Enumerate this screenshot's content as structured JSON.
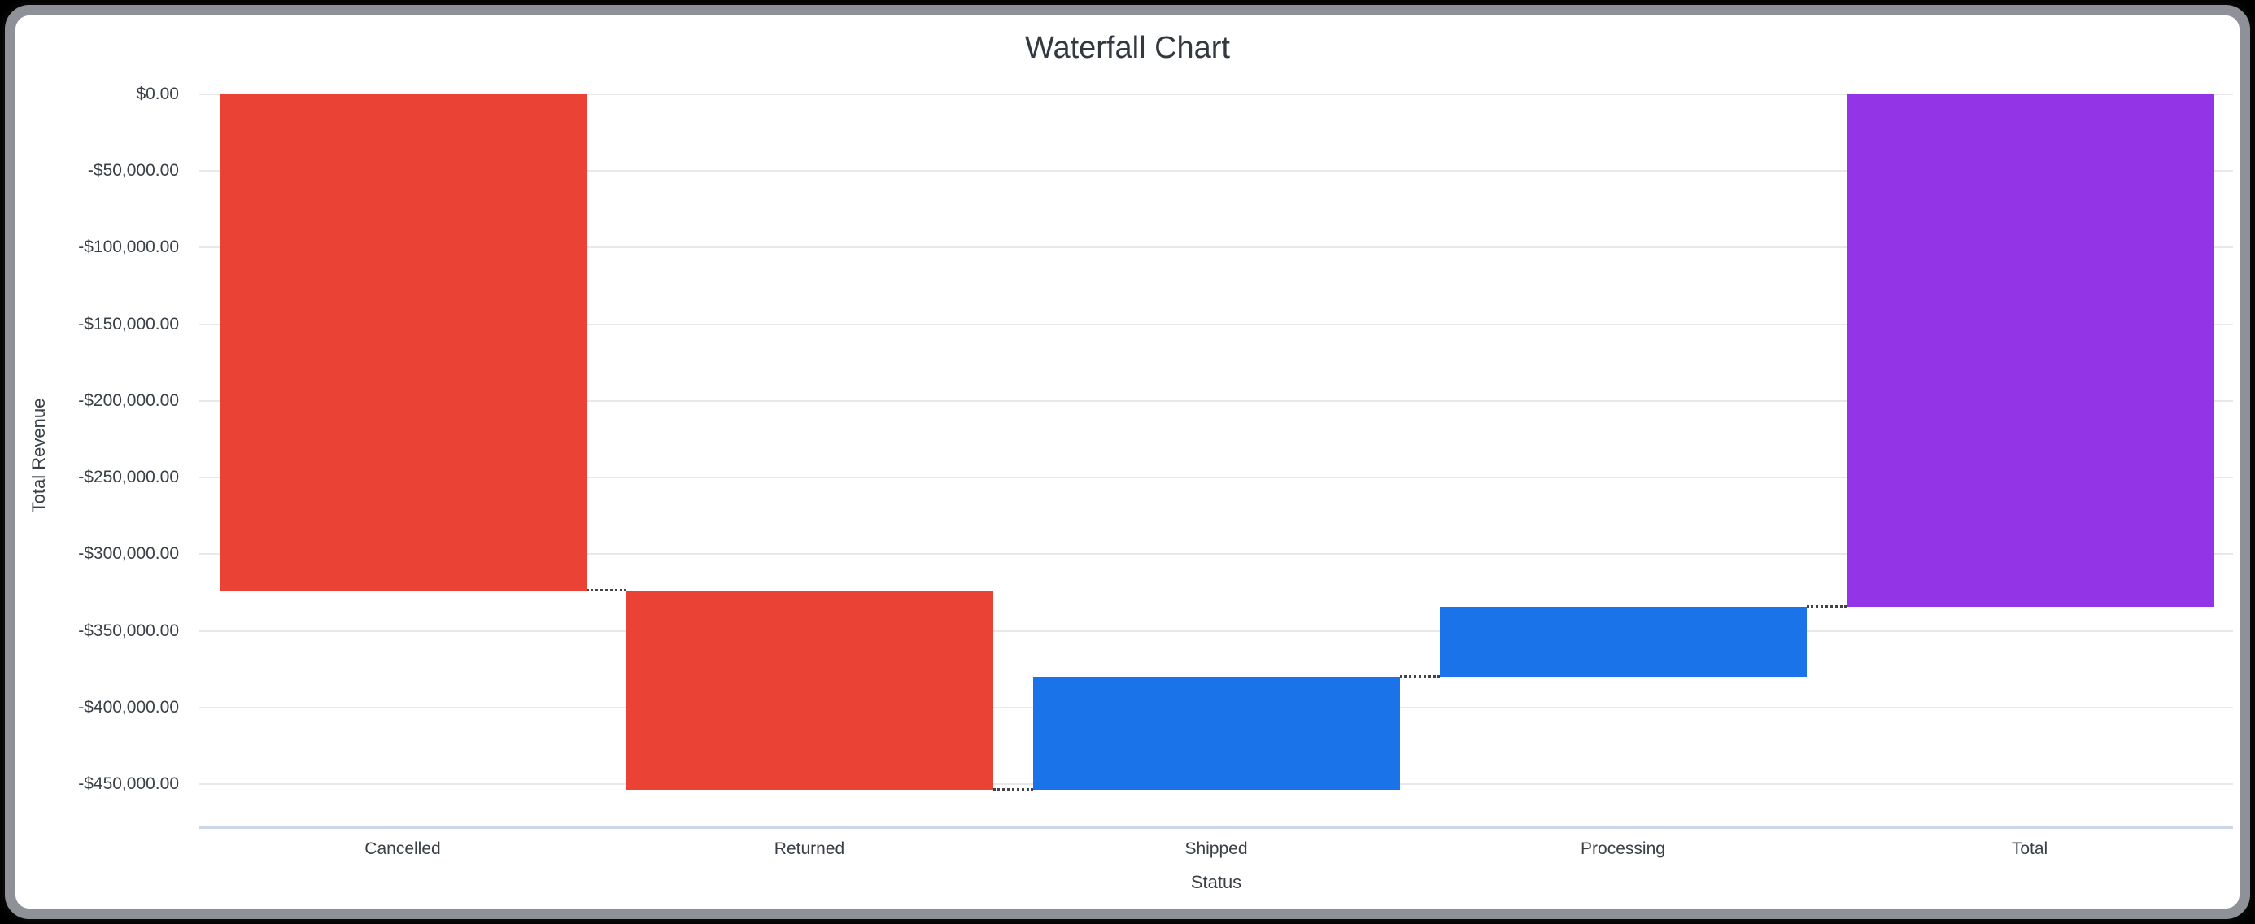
{
  "window": {
    "background_color": "#000000",
    "frame_color": "#8e9298",
    "card_color": "#ffffff"
  },
  "chart_data": {
    "type": "bar",
    "subtype": "waterfall",
    "title": "Waterfall Chart",
    "xlabel": "Status",
    "ylabel": "Total Revenue",
    "categories": [
      "Cancelled",
      "Returned",
      "Shipped",
      "Processing",
      "Total"
    ],
    "series": [
      {
        "name": "Cancelled",
        "value": -323500,
        "cumulative_start": 0,
        "cumulative_end": -323500,
        "role": "decrease"
      },
      {
        "name": "Returned",
        "value": -130000,
        "cumulative_start": -323500,
        "cumulative_end": -453500,
        "role": "decrease"
      },
      {
        "name": "Shipped",
        "value": 73500,
        "cumulative_start": -453500,
        "cumulative_end": -380000,
        "role": "increase"
      },
      {
        "name": "Processing",
        "value": 45500,
        "cumulative_start": -380000,
        "cumulative_end": -334500,
        "role": "increase"
      },
      {
        "name": "Total",
        "value": -334500,
        "cumulative_start": 0,
        "cumulative_end": -334500,
        "role": "total"
      }
    ],
    "colors": {
      "decrease": "#ea4335",
      "increase": "#1a73e8",
      "total": "#9334e6"
    },
    "y_ticks": [
      {
        "value": 0,
        "label": "$0.00"
      },
      {
        "value": -50000,
        "label": "-$50,000.00"
      },
      {
        "value": -100000,
        "label": "-$100,000.00"
      },
      {
        "value": -150000,
        "label": "-$150,000.00"
      },
      {
        "value": -200000,
        "label": "-$200,000.00"
      },
      {
        "value": -250000,
        "label": "-$250,000.00"
      },
      {
        "value": -300000,
        "label": "-$300,000.00"
      },
      {
        "value": -350000,
        "label": "-$350,000.00"
      },
      {
        "value": -400000,
        "label": "-$400,000.00"
      },
      {
        "value": -450000,
        "label": "-$450,000.00"
      }
    ],
    "ylim": [
      -477500,
      0
    ],
    "grid": true,
    "legend": "none",
    "gridline_color": "#e8e8e8",
    "baseline_color": "#ccd6e4",
    "connector_color": "#3f4449",
    "text_color": "#3a4047"
  }
}
